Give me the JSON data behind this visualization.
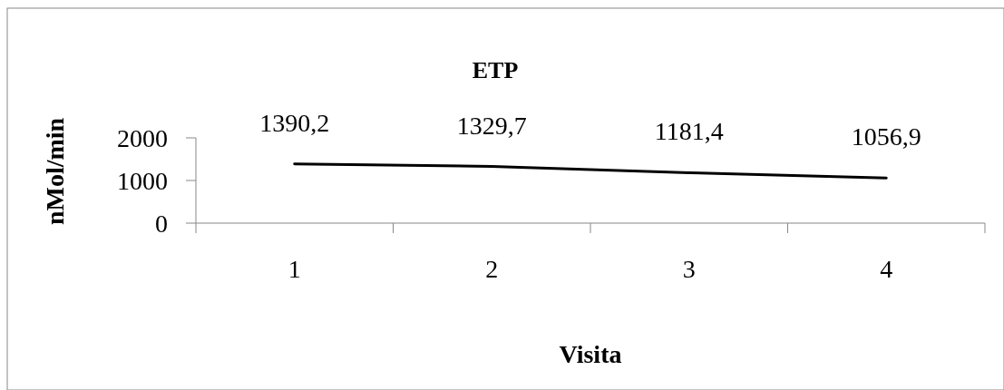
{
  "chart_data": {
    "type": "line",
    "title": "ETP",
    "xlabel": "Visita",
    "ylabel": "nMol/min",
    "categories": [
      "1",
      "2",
      "3",
      "4"
    ],
    "series": [
      {
        "color": "#000000",
        "values": [
          1390.2,
          1329.7,
          1181.4,
          1056.9
        ],
        "value_labels": [
          "1390,2",
          "1329,7",
          "1181,4",
          "1056,9"
        ]
      }
    ],
    "ylim": [
      0,
      2000
    ],
    "yticks": [
      0,
      1000,
      2000
    ],
    "grid": false,
    "marker": "none",
    "line_style": "solid"
  }
}
